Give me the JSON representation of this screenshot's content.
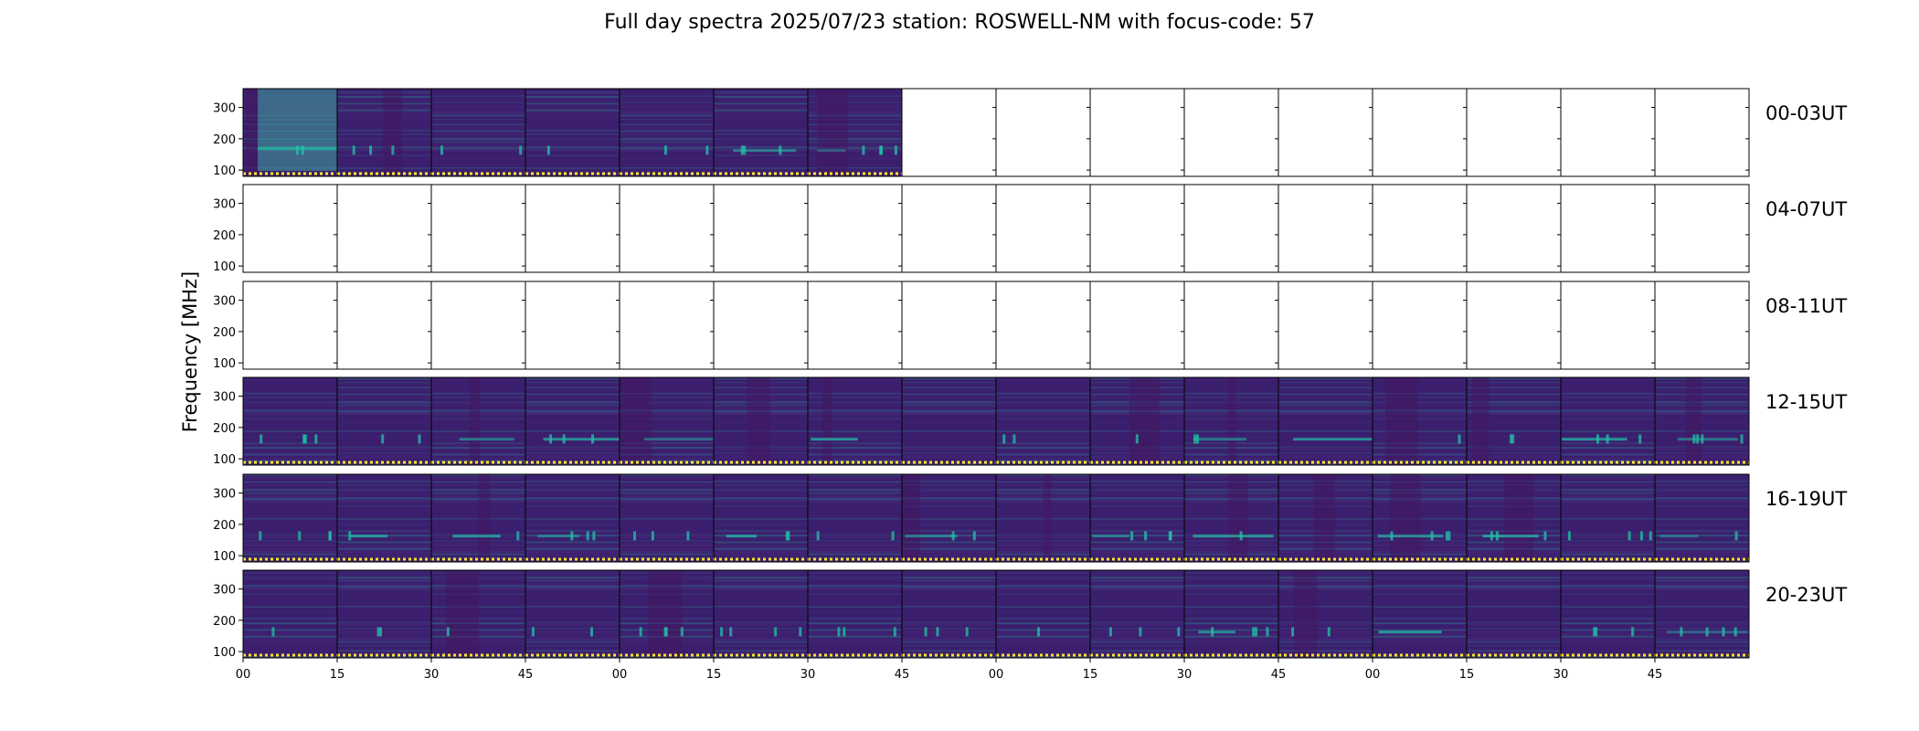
{
  "title": "Full day spectra 2025/07/23 station: ROSWELL-NM with focus-code: 57",
  "chart_data": {
    "type": "heatmap",
    "title": "Full day spectra 2025/07/23 station: ROSWELL-NM with focus-code: 57",
    "ylabel": "Frequency [MHz]",
    "ylim": [
      80,
      360
    ],
    "yticks": [
      "100",
      "200",
      "300"
    ],
    "xtick_labels": [
      "00",
      "15",
      "30",
      "45",
      "00",
      "15",
      "30",
      "45",
      "00",
      "15",
      "30",
      "45",
      "00",
      "15",
      "30",
      "45"
    ],
    "panels_per_row": 16,
    "colormap": "viridis",
    "colors": {
      "background": "#3b1f6e",
      "dark": "#44145e",
      "band": "#3fa3a0",
      "bright": "#21c4a8",
      "marker": "#fde725"
    },
    "rows": [
      {
        "label": "00-03UT",
        "filled": [
          true,
          true,
          true,
          true,
          true,
          true,
          true,
          false,
          false,
          false,
          false,
          false,
          false,
          false,
          false,
          false
        ]
      },
      {
        "label": "04-07UT",
        "filled": [
          false,
          false,
          false,
          false,
          false,
          false,
          false,
          false,
          false,
          false,
          false,
          false,
          false,
          false,
          false,
          false
        ]
      },
      {
        "label": "08-11UT",
        "filled": [
          false,
          false,
          false,
          false,
          false,
          false,
          false,
          false,
          false,
          false,
          false,
          false,
          false,
          false,
          false,
          false
        ]
      },
      {
        "label": "12-15UT",
        "filled": [
          true,
          true,
          true,
          true,
          true,
          true,
          true,
          true,
          true,
          true,
          true,
          true,
          true,
          true,
          true,
          true
        ]
      },
      {
        "label": "16-19UT",
        "filled": [
          true,
          true,
          true,
          true,
          true,
          true,
          true,
          true,
          true,
          true,
          true,
          true,
          true,
          true,
          true,
          true
        ]
      },
      {
        "label": "20-23UT",
        "filled": [
          true,
          true,
          true,
          true,
          true,
          true,
          true,
          true,
          true,
          true,
          true,
          true,
          true,
          true,
          true,
          true
        ]
      }
    ]
  }
}
